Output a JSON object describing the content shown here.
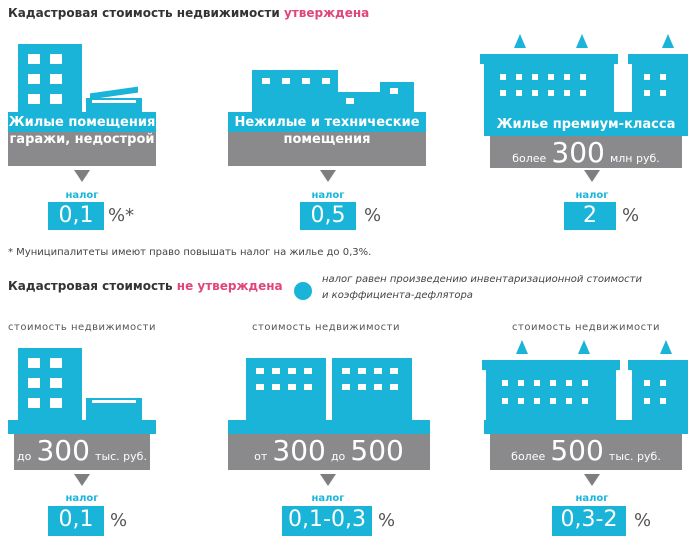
{
  "approved": {
    "title_prefix": "Кадастровая стоимость недвижимости ",
    "title_accent": "утверждена",
    "cards": [
      {
        "label_line1": "Жилые помещения",
        "label_line2": "гаражи, недострой",
        "tax_label": "налог",
        "rate": "0,1",
        "unit": "%*"
      },
      {
        "label_line1": "Нежилые и технические",
        "label_line2": "помещения",
        "tax_label": "налог",
        "rate": "0,5",
        "unit": "%"
      },
      {
        "label_line1": "Жилье премиум-класса",
        "value_prefix": "более",
        "value_big": "300",
        "value_suffix": "млн руб.",
        "tax_label": "налог",
        "rate": "2",
        "unit": "%"
      }
    ],
    "footnote": "* Муниципалитеты имеют право повышать налог на жилье до 0,3%."
  },
  "not_approved": {
    "title_prefix": "Кадастровая стоимость ",
    "title_accent": "не утверждена",
    "legend_line1": "налог равен произведению инвентаризационной стоимости",
    "legend_line2": "и коэффициента-дефлятора",
    "cards": [
      {
        "caption": "стоимость недвижимости",
        "prefix": "до",
        "big": "300",
        "suffix": "тыс. руб.",
        "tax_label": "налог",
        "rate": "0,1",
        "unit": "%"
      },
      {
        "caption": "стоимость недвижимости",
        "prefix": "от",
        "big": "300",
        "mid": "до",
        "big2": "500",
        "suffix": "тыс. руб.",
        "tax_label": "налог",
        "rate": "0,1-0,3",
        "unit": "%"
      },
      {
        "caption": "стоимость недвижимости",
        "prefix": "более",
        "big": "500",
        "suffix": "тыс. руб.",
        "tax_label": "налог",
        "rate": "0,3-2",
        "unit": "%"
      }
    ]
  },
  "colors": {
    "accent": "#1ab4d9",
    "pink": "#e0457b",
    "gray": "#8a8a8c"
  }
}
